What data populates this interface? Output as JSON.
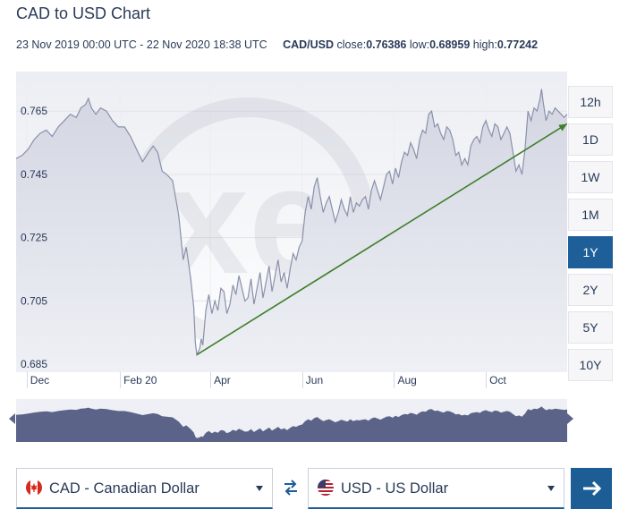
{
  "header": {
    "title": "CAD to USD Chart",
    "date_range": "23 Nov 2019 00:00 UTC - 22 Nov 2020 18:38 UTC",
    "pair": "CAD/USD",
    "close_label": "close:",
    "close_value": "0.76386",
    "low_label": "low:",
    "low_value": "0.68959",
    "high_label": "high:",
    "high_value": "0.77242"
  },
  "ranges": [
    {
      "label": "12h",
      "active": false
    },
    {
      "label": "1D",
      "active": false
    },
    {
      "label": "1W",
      "active": false
    },
    {
      "label": "1M",
      "active": false
    },
    {
      "label": "1Y",
      "active": true
    },
    {
      "label": "2Y",
      "active": false
    },
    {
      "label": "5Y",
      "active": false
    },
    {
      "label": "10Y",
      "active": false
    }
  ],
  "chart_data": {
    "type": "area",
    "ylabel_ticks": [
      "0.765",
      "0.745",
      "0.725",
      "0.705",
      "0.685"
    ],
    "y_tick_values": [
      0.765,
      0.745,
      0.725,
      0.705,
      0.685
    ],
    "ylim": [
      0.6825,
      0.7775
    ],
    "xlim": [
      0,
      366
    ],
    "x_tick_labels": [
      "Dec",
      "Feb 20",
      "Apr",
      "Jun",
      "Aug",
      "Oct"
    ],
    "x_tick_positions": [
      7,
      69,
      129,
      190,
      251,
      312
    ],
    "grid": true,
    "values": [
      [
        0,
        0.75
      ],
      [
        4,
        0.751
      ],
      [
        8,
        0.753
      ],
      [
        12,
        0.756
      ],
      [
        16,
        0.758
      ],
      [
        20,
        0.759
      ],
      [
        24,
        0.757
      ],
      [
        28,
        0.76
      ],
      [
        32,
        0.762
      ],
      [
        36,
        0.764
      ],
      [
        40,
        0.763
      ],
      [
        43,
        0.766
      ],
      [
        46,
        0.767
      ],
      [
        48,
        0.769
      ],
      [
        50,
        0.766
      ],
      [
        53,
        0.764
      ],
      [
        56,
        0.766
      ],
      [
        60,
        0.765
      ],
      [
        64,
        0.762
      ],
      [
        68,
        0.76
      ],
      [
        72,
        0.76
      ],
      [
        76,
        0.757
      ],
      [
        80,
        0.753
      ],
      [
        84,
        0.749
      ],
      [
        88,
        0.752
      ],
      [
        91,
        0.754
      ],
      [
        94,
        0.752
      ],
      [
        97,
        0.746
      ],
      [
        100,
        0.745
      ],
      [
        104,
        0.743
      ],
      [
        108,
        0.732
      ],
      [
        111,
        0.718
      ],
      [
        113,
        0.722
      ],
      [
        116,
        0.712
      ],
      [
        118,
        0.703
      ],
      [
        119,
        0.692
      ],
      [
        120,
        0.688
      ],
      [
        121,
        0.689
      ],
      [
        122,
        0.69
      ],
      [
        123,
        0.693
      ],
      [
        124,
        0.691
      ],
      [
        126,
        0.702
      ],
      [
        128,
        0.707
      ],
      [
        130,
        0.701
      ],
      [
        132,
        0.705
      ],
      [
        134,
        0.702
      ],
      [
        136,
        0.709
      ],
      [
        138,
        0.708
      ],
      [
        140,
        0.701
      ],
      [
        142,
        0.704
      ],
      [
        144,
        0.71
      ],
      [
        146,
        0.707
      ],
      [
        148,
        0.713
      ],
      [
        150,
        0.709
      ],
      [
        152,
        0.705
      ],
      [
        154,
        0.706
      ],
      [
        156,
        0.712
      ],
      [
        158,
        0.704
      ],
      [
        160,
        0.709
      ],
      [
        162,
        0.714
      ],
      [
        164,
        0.706
      ],
      [
        166,
        0.711
      ],
      [
        168,
        0.716
      ],
      [
        170,
        0.708
      ],
      [
        172,
        0.713
      ],
      [
        174,
        0.718
      ],
      [
        176,
        0.711
      ],
      [
        178,
        0.714
      ],
      [
        180,
        0.709
      ],
      [
        182,
        0.715
      ],
      [
        184,
        0.72
      ],
      [
        186,
        0.718
      ],
      [
        188,
        0.722
      ],
      [
        190,
        0.724
      ],
      [
        192,
        0.733
      ],
      [
        194,
        0.738
      ],
      [
        196,
        0.734
      ],
      [
        198,
        0.741
      ],
      [
        200,
        0.744
      ],
      [
        202,
        0.738
      ],
      [
        204,
        0.733
      ],
      [
        206,
        0.736
      ],
      [
        208,
        0.738
      ],
      [
        210,
        0.734
      ],
      [
        212,
        0.73
      ],
      [
        214,
        0.733
      ],
      [
        216,
        0.737
      ],
      [
        218,
        0.734
      ],
      [
        220,
        0.732
      ],
      [
        222,
        0.738
      ],
      [
        224,
        0.733
      ],
      [
        226,
        0.736
      ],
      [
        228,
        0.735
      ],
      [
        230,
        0.737
      ],
      [
        232,
        0.738
      ],
      [
        234,
        0.734
      ],
      [
        236,
        0.74
      ],
      [
        238,
        0.743
      ],
      [
        240,
        0.74
      ],
      [
        242,
        0.737
      ],
      [
        244,
        0.741
      ],
      [
        246,
        0.745
      ],
      [
        248,
        0.746
      ],
      [
        250,
        0.742
      ],
      [
        252,
        0.747
      ],
      [
        254,
        0.744
      ],
      [
        256,
        0.749
      ],
      [
        258,
        0.752
      ],
      [
        260,
        0.751
      ],
      [
        262,
        0.755
      ],
      [
        264,
        0.753
      ],
      [
        266,
        0.75
      ],
      [
        268,
        0.756
      ],
      [
        270,
        0.759
      ],
      [
        272,
        0.758
      ],
      [
        274,
        0.764
      ],
      [
        276,
        0.765
      ],
      [
        278,
        0.76
      ],
      [
        280,
        0.761
      ],
      [
        282,
        0.758
      ],
      [
        284,
        0.756
      ],
      [
        286,
        0.76
      ],
      [
        288,
        0.759
      ],
      [
        290,
        0.756
      ],
      [
        292,
        0.751
      ],
      [
        294,
        0.752
      ],
      [
        296,
        0.748
      ],
      [
        298,
        0.75
      ],
      [
        300,
        0.748
      ],
      [
        302,
        0.754
      ],
      [
        304,
        0.756
      ],
      [
        306,
        0.757
      ],
      [
        308,
        0.755
      ],
      [
        310,
        0.76
      ],
      [
        312,
        0.762
      ],
      [
        314,
        0.759
      ],
      [
        316,
        0.757
      ],
      [
        318,
        0.761
      ],
      [
        320,
        0.76
      ],
      [
        322,
        0.756
      ],
      [
        324,
        0.758
      ],
      [
        326,
        0.76
      ],
      [
        328,
        0.758
      ],
      [
        330,
        0.752
      ],
      [
        332,
        0.746
      ],
      [
        334,
        0.748
      ],
      [
        336,
        0.745
      ],
      [
        338,
        0.753
      ],
      [
        340,
        0.765
      ],
      [
        342,
        0.762
      ],
      [
        344,
        0.766
      ],
      [
        346,
        0.765
      ],
      [
        348,
        0.769
      ],
      [
        349,
        0.772
      ],
      [
        350,
        0.768
      ],
      [
        352,
        0.762
      ],
      [
        354,
        0.765
      ],
      [
        356,
        0.764
      ],
      [
        358,
        0.766
      ],
      [
        360,
        0.765
      ],
      [
        362,
        0.764
      ],
      [
        364,
        0.763
      ],
      [
        366,
        0.764
      ]
    ],
    "trendline": [
      [
        120,
        0.688
      ],
      [
        366,
        0.761
      ]
    ]
  },
  "colors": {
    "line": "#8a90aa",
    "fill": "#dadde7",
    "trend": "#3f7f2a",
    "nav_fill": "#5b6488",
    "nav_bg": "#eef0f5",
    "active": "#1f5f99",
    "button": "#1c5d96"
  },
  "selectors": {
    "from_label": "CAD - Canadian Dollar",
    "to_label": "USD - US Dollar",
    "from_flag_icon": "canada-flag-icon",
    "to_flag_icon": "us-flag-icon"
  }
}
